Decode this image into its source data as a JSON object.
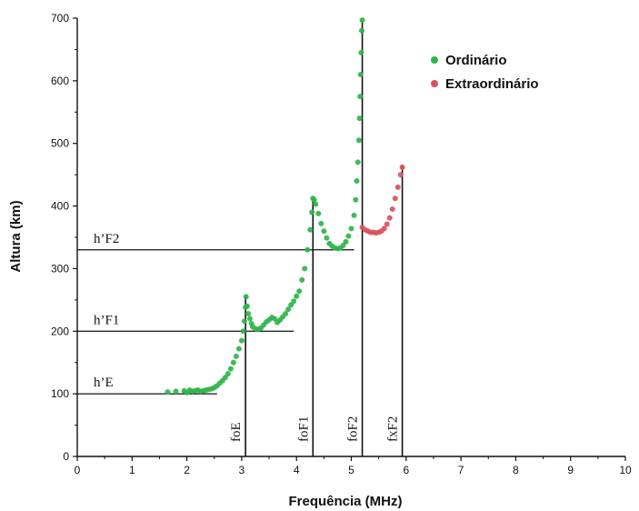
{
  "chart_data": {
    "type": "scatter",
    "xlabel": "Frequência (MHz)",
    "ylabel": "Altura (km)",
    "xlim": [
      0,
      10
    ],
    "ylim": [
      0,
      700
    ],
    "xticks": [
      "0",
      "1",
      "2",
      "3",
      "4",
      "5",
      "6",
      "7",
      "8",
      "9",
      "10"
    ],
    "yticks": [
      "0",
      "100",
      "200",
      "300",
      "400",
      "500",
      "600",
      "700"
    ],
    "grid": false,
    "legend_position": "top-right",
    "colors": {
      "ordinario": "#2fb44a",
      "extraordinario": "#d9525a"
    },
    "series": [
      {
        "name": "Ordinário",
        "color": "#2fb44a",
        "points": [
          [
            1.65,
            103
          ],
          [
            1.8,
            104
          ],
          [
            1.95,
            105
          ],
          [
            2.0,
            102
          ],
          [
            2.05,
            106
          ],
          [
            2.1,
            104
          ],
          [
            2.15,
            105
          ],
          [
            2.2,
            106
          ],
          [
            2.25,
            104
          ],
          [
            2.3,
            105
          ],
          [
            2.35,
            106
          ],
          [
            2.4,
            107
          ],
          [
            2.45,
            108
          ],
          [
            2.5,
            110
          ],
          [
            2.55,
            113
          ],
          [
            2.6,
            117
          ],
          [
            2.65,
            121
          ],
          [
            2.7,
            126
          ],
          [
            2.75,
            132
          ],
          [
            2.8,
            140
          ],
          [
            2.85,
            150
          ],
          [
            2.9,
            160
          ],
          [
            2.95,
            172
          ],
          [
            3.0,
            185
          ],
          [
            3.03,
            200
          ],
          [
            3.05,
            216
          ],
          [
            3.07,
            238
          ],
          [
            3.08,
            255
          ],
          [
            3.1,
            240
          ],
          [
            3.12,
            228
          ],
          [
            3.15,
            220
          ],
          [
            3.18,
            212
          ],
          [
            3.2,
            207
          ],
          [
            3.25,
            204
          ],
          [
            3.3,
            203
          ],
          [
            3.35,
            205
          ],
          [
            3.4,
            210
          ],
          [
            3.45,
            215
          ],
          [
            3.5,
            218
          ],
          [
            3.55,
            222
          ],
          [
            3.6,
            220
          ],
          [
            3.65,
            214
          ],
          [
            3.7,
            218
          ],
          [
            3.75,
            223
          ],
          [
            3.8,
            228
          ],
          [
            3.85,
            235
          ],
          [
            3.9,
            242
          ],
          [
            3.95,
            248
          ],
          [
            4.0,
            256
          ],
          [
            4.05,
            264
          ],
          [
            4.1,
            282
          ],
          [
            4.15,
            300
          ],
          [
            4.2,
            330
          ],
          [
            4.25,
            362
          ],
          [
            4.28,
            390
          ],
          [
            4.3,
            412
          ],
          [
            4.32,
            410
          ],
          [
            4.35,
            403
          ],
          [
            4.4,
            388
          ],
          [
            4.45,
            372
          ],
          [
            4.5,
            360
          ],
          [
            4.55,
            349
          ],
          [
            4.6,
            340
          ],
          [
            4.65,
            336
          ],
          [
            4.7,
            333
          ],
          [
            4.75,
            332
          ],
          [
            4.8,
            333
          ],
          [
            4.85,
            337
          ],
          [
            4.9,
            343
          ],
          [
            4.95,
            352
          ],
          [
            5.0,
            364
          ],
          [
            5.05,
            385
          ],
          [
            5.08,
            410
          ],
          [
            5.1,
            440
          ],
          [
            5.12,
            470
          ],
          [
            5.14,
            505
          ],
          [
            5.15,
            540
          ],
          [
            5.16,
            575
          ],
          [
            5.17,
            610
          ],
          [
            5.18,
            645
          ],
          [
            5.19,
            680
          ],
          [
            5.2,
            697
          ]
        ]
      },
      {
        "name": "Extraordinário",
        "color": "#d9525a",
        "points": [
          [
            5.2,
            366
          ],
          [
            5.25,
            362
          ],
          [
            5.3,
            360
          ],
          [
            5.35,
            358
          ],
          [
            5.4,
            358
          ],
          [
            5.45,
            357
          ],
          [
            5.5,
            358
          ],
          [
            5.55,
            360
          ],
          [
            5.6,
            364
          ],
          [
            5.65,
            371
          ],
          [
            5.7,
            381
          ],
          [
            5.75,
            395
          ],
          [
            5.8,
            412
          ],
          [
            5.85,
            430
          ],
          [
            5.9,
            450
          ],
          [
            5.93,
            462
          ]
        ]
      }
    ],
    "reference_lines": {
      "horizontal": [
        {
          "label": "h’E",
          "y": 100,
          "x_end": 2.55
        },
        {
          "label": "h’F1",
          "y": 200,
          "x_end": 3.95
        },
        {
          "label": "h’F2",
          "y": 330,
          "x_end": 5.05
        }
      ],
      "vertical": [
        {
          "label": "foE",
          "x": 3.07,
          "y_top": 258
        },
        {
          "label": "foF1",
          "x": 4.3,
          "y_top": 412
        },
        {
          "label": "foF2",
          "x": 5.2,
          "y_top": 697
        },
        {
          "label": "fxF2",
          "x": 5.93,
          "y_top": 465
        }
      ]
    }
  }
}
